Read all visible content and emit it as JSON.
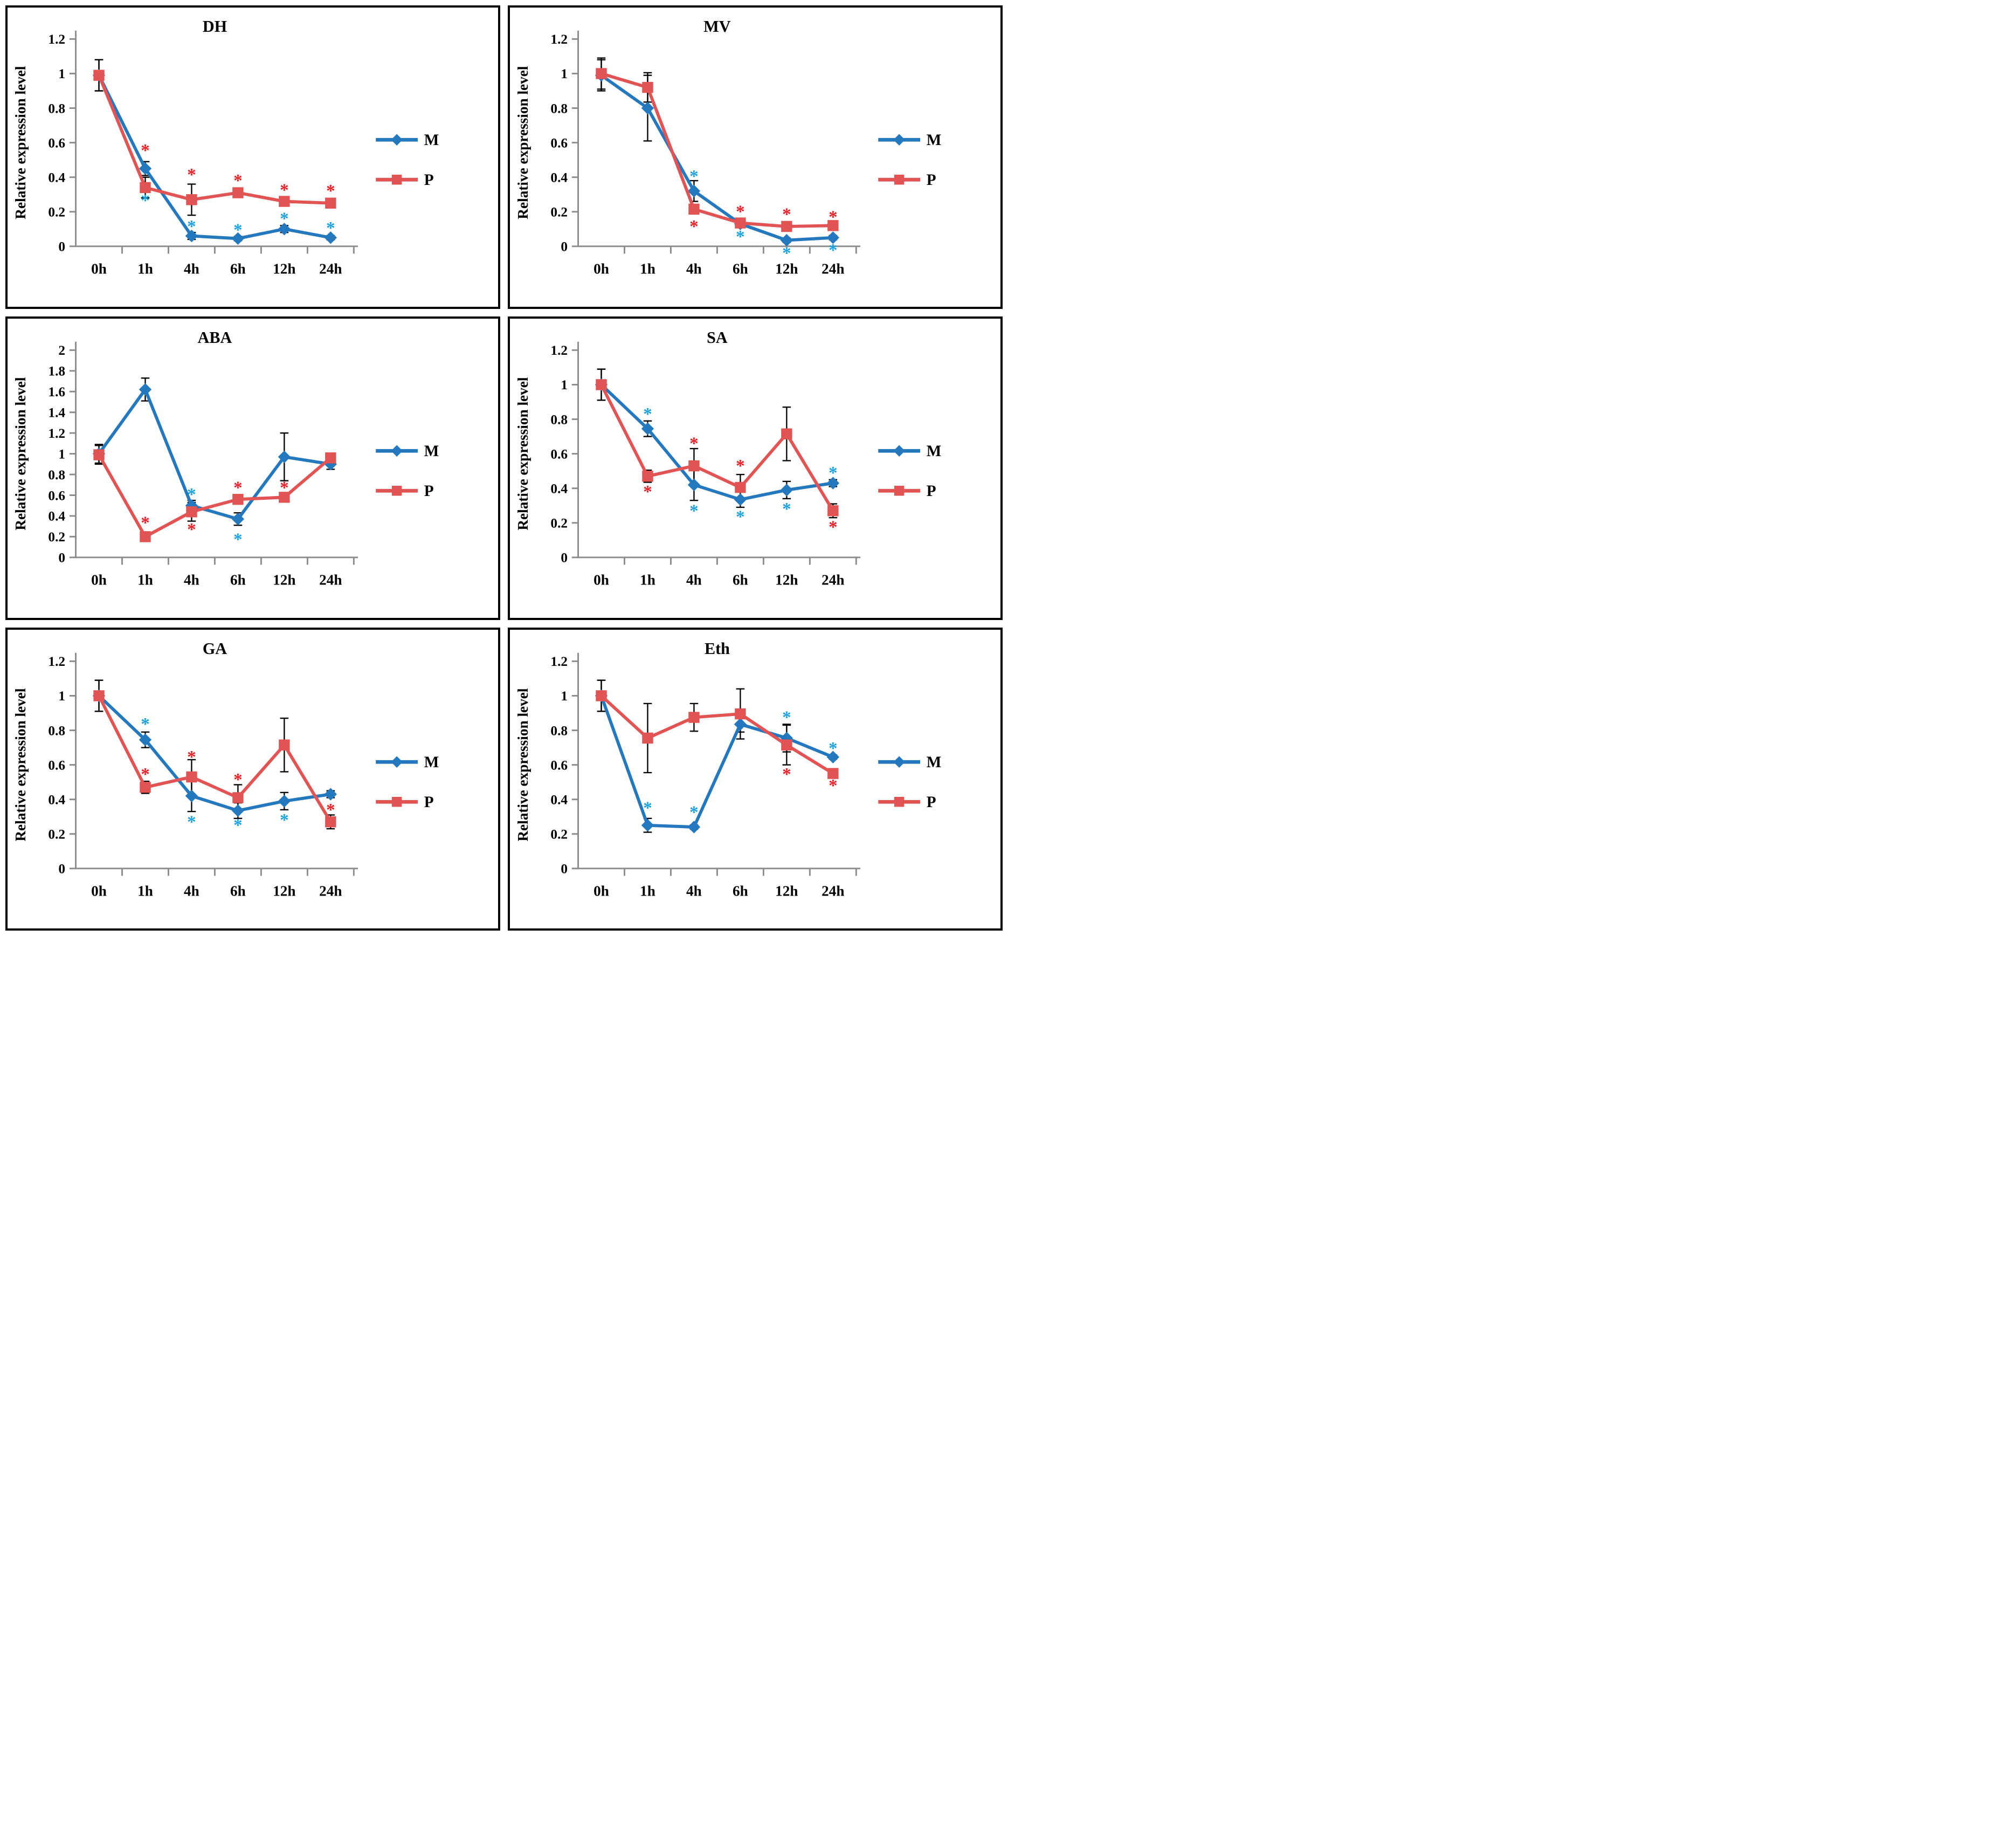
{
  "figure": {
    "star_glyph": "*",
    "colors": {
      "m_line": "#2478BE",
      "p_line": "#E25353",
      "m_star": "#1BA2DF",
      "p_star": "#EE1D25",
      "axis": "#8C8C8C",
      "error_bar": "#000000",
      "text": "#000000",
      "panel_border": "#000000"
    }
  },
  "chart_data": [
    {
      "type": "line",
      "title": "DH",
      "ylabel": "Relative expression level",
      "xlabel": "",
      "ylim": [
        0,
        1.2
      ],
      "yticks": [
        "0",
        "0.2",
        "0.4",
        "0.6",
        "0.8",
        "1",
        "1.2"
      ],
      "categories": [
        "0h",
        "1h",
        "4h",
        "6h",
        "12h",
        "24h"
      ],
      "legend_position": "right",
      "series": [
        {
          "name": "M",
          "marker": "diamond",
          "values": [
            0.99,
            0.45,
            0.06,
            0.045,
            0.1,
            0.05
          ],
          "errors": [
            0.09,
            0.04,
            0.02,
            0.012,
            0.02,
            0.012
          ]
        },
        {
          "name": "P",
          "marker": "square",
          "values": [
            0.99,
            0.34,
            0.27,
            0.31,
            0.26,
            0.25
          ],
          "errors": [
            0.09,
            0.06,
            0.09,
            0.025,
            0.025,
            0.02
          ]
        }
      ],
      "significance_marks": [
        {
          "t": 1,
          "series": "P",
          "y": 0.565
        },
        {
          "t": 1,
          "series": "M",
          "y": 0.275
        },
        {
          "t": 2,
          "series": "P",
          "y": 0.425
        },
        {
          "t": 2,
          "series": "M",
          "y": 0.125
        },
        {
          "t": 3,
          "series": "P",
          "y": 0.39
        },
        {
          "t": 3,
          "series": "M",
          "y": 0.105
        },
        {
          "t": 4,
          "series": "P",
          "y": 0.335
        },
        {
          "t": 4,
          "series": "M",
          "y": 0.17
        },
        {
          "t": 5,
          "series": "P",
          "y": 0.33
        },
        {
          "t": 5,
          "series": "M",
          "y": 0.115
        }
      ]
    },
    {
      "type": "line",
      "title": "MV",
      "ylabel": "Relative expression level",
      "xlabel": "",
      "ylim": [
        0,
        1.2
      ],
      "yticks": [
        "0",
        "0.2",
        "0.4",
        "0.6",
        "0.8",
        "1",
        "1.2"
      ],
      "categories": [
        "0h",
        "1h",
        "4h",
        "6h",
        "12h",
        "24h"
      ],
      "legend_position": "right",
      "series": [
        {
          "name": "M",
          "marker": "diamond",
          "values": [
            0.99,
            0.8,
            0.32,
            0.13,
            0.035,
            0.05
          ],
          "errors": [
            0.09,
            0.19,
            0.06,
            0.02,
            0.012,
            0.012
          ]
        },
        {
          "name": "P",
          "marker": "square",
          "values": [
            1.0,
            0.92,
            0.215,
            0.135,
            0.115,
            0.12
          ],
          "errors": [
            0.09,
            0.085,
            0.02,
            0.02,
            0.018,
            0.018
          ]
        }
      ],
      "significance_marks": [
        {
          "t": 2,
          "series": "M",
          "y": 0.415
        },
        {
          "t": 2,
          "series": "P",
          "y": 0.125
        },
        {
          "t": 3,
          "series": "P",
          "y": 0.21
        },
        {
          "t": 3,
          "series": "M",
          "y": 0.065
        },
        {
          "t": 4,
          "series": "P",
          "y": 0.195
        },
        {
          "t": 4,
          "series": "M",
          "y": -0.03
        },
        {
          "t": 5,
          "series": "P",
          "y": 0.18
        },
        {
          "t": 5,
          "series": "M",
          "y": -0.012
        }
      ]
    },
    {
      "type": "line",
      "title": "ABA",
      "ylabel": "Relative expression level",
      "xlabel": "",
      "ylim": [
        0,
        2
      ],
      "yticks": [
        "0",
        "0.2",
        "0.4",
        "0.6",
        "0.8",
        "1",
        "1.2",
        "1.4",
        "1.6",
        "1.8",
        "2"
      ],
      "categories": [
        "0h",
        "1h",
        "4h",
        "6h",
        "12h",
        "24h"
      ],
      "legend_position": "right",
      "series": [
        {
          "name": "M",
          "marker": "diamond",
          "values": [
            1.0,
            1.62,
            0.5,
            0.37,
            0.97,
            0.9
          ],
          "errors": [
            0.09,
            0.11,
            0.05,
            0.06,
            0.23,
            0.05
          ]
        },
        {
          "name": "P",
          "marker": "square",
          "values": [
            0.99,
            0.2,
            0.44,
            0.56,
            0.58,
            0.96
          ],
          "errors": [
            0.09,
            0.03,
            0.09,
            0.035,
            0.045,
            0.03
          ]
        }
      ],
      "significance_marks": [
        {
          "t": 1,
          "series": "P",
          "y": 0.35
        },
        {
          "t": 2,
          "series": "M",
          "y": 0.625
        },
        {
          "t": 2,
          "series": "P",
          "y": 0.285
        },
        {
          "t": 3,
          "series": "P",
          "y": 0.69
        },
        {
          "t": 3,
          "series": "M",
          "y": 0.19
        },
        {
          "t": 4,
          "series": "P",
          "y": 0.69
        }
      ]
    },
    {
      "type": "line",
      "title": "SA",
      "ylabel": "Relative expression level",
      "xlabel": "",
      "ylim": [
        0,
        1.2
      ],
      "yticks": [
        "0",
        "0.2",
        "0.4",
        "0.6",
        "0.8",
        "1",
        "1.2"
      ],
      "categories": [
        "0h",
        "1h",
        "4h",
        "6h",
        "12h",
        "24h"
      ],
      "legend_position": "right",
      "series": [
        {
          "name": "M",
          "marker": "diamond",
          "values": [
            1.0,
            0.745,
            0.42,
            0.335,
            0.39,
            0.43
          ],
          "errors": [
            0.09,
            0.045,
            0.09,
            0.045,
            0.05,
            0.02
          ]
        },
        {
          "name": "P",
          "marker": "square",
          "values": [
            1.0,
            0.47,
            0.53,
            0.405,
            0.715,
            0.27
          ],
          "errors": [
            0.09,
            0.035,
            0.1,
            0.075,
            0.155,
            0.04
          ]
        }
      ],
      "significance_marks": [
        {
          "t": 1,
          "series": "M",
          "y": 0.84
        },
        {
          "t": 1,
          "series": "P",
          "y": 0.39
        },
        {
          "t": 2,
          "series": "P",
          "y": 0.67
        },
        {
          "t": 2,
          "series": "M",
          "y": 0.28
        },
        {
          "t": 3,
          "series": "P",
          "y": 0.54
        },
        {
          "t": 3,
          "series": "M",
          "y": 0.245
        },
        {
          "t": 4,
          "series": "M",
          "y": 0.29
        },
        {
          "t": 5,
          "series": "M",
          "y": 0.5
        },
        {
          "t": 5,
          "series": "P",
          "y": 0.185
        }
      ]
    },
    {
      "type": "line",
      "title": "GA",
      "ylabel": "Relative expression level",
      "xlabel": "",
      "ylim": [
        0,
        1.2
      ],
      "yticks": [
        "0",
        "0.2",
        "0.4",
        "0.6",
        "0.8",
        "1",
        "1.2"
      ],
      "categories": [
        "0h",
        "1h",
        "4h",
        "6h",
        "12h",
        "24h"
      ],
      "legend_position": "right",
      "series": [
        {
          "name": "M",
          "marker": "diamond",
          "values": [
            1.0,
            0.745,
            0.42,
            0.335,
            0.39,
            0.43
          ],
          "errors": [
            0.09,
            0.045,
            0.09,
            0.045,
            0.05,
            0.02
          ]
        },
        {
          "name": "P",
          "marker": "square",
          "values": [
            1.0,
            0.47,
            0.53,
            0.41,
            0.715,
            0.27
          ],
          "errors": [
            0.09,
            0.035,
            0.1,
            0.075,
            0.155,
            0.04
          ]
        }
      ],
      "significance_marks": [
        {
          "t": 1,
          "series": "M",
          "y": 0.845
        },
        {
          "t": 1,
          "series": "P",
          "y": 0.555
        },
        {
          "t": 2,
          "series": "P",
          "y": 0.655
        },
        {
          "t": 2,
          "series": "M",
          "y": 0.28
        },
        {
          "t": 3,
          "series": "P",
          "y": 0.525
        },
        {
          "t": 3,
          "series": "M",
          "y": 0.26
        },
        {
          "t": 4,
          "series": "M",
          "y": 0.29
        },
        {
          "t": 5,
          "series": "P",
          "y": 0.35
        }
      ]
    },
    {
      "type": "line",
      "title": "Eth",
      "ylabel": "Relative expression level",
      "xlabel": "",
      "ylim": [
        0,
        1.2
      ],
      "yticks": [
        "0",
        "0.2",
        "0.4",
        "0.6",
        "0.8",
        "1",
        "1.2"
      ],
      "categories": [
        "0h",
        "1h",
        "4h",
        "6h",
        "12h",
        "24h"
      ],
      "legend_position": "right",
      "series": [
        {
          "name": "M",
          "marker": "diamond",
          "values": [
            1.0,
            0.25,
            0.24,
            0.835,
            0.755,
            0.645
          ],
          "errors": [
            0.09,
            0.04,
            0.012,
            0.045,
            0.08,
            0.012
          ]
        },
        {
          "name": "P",
          "marker": "square",
          "values": [
            1.0,
            0.755,
            0.875,
            0.895,
            0.715,
            0.55
          ],
          "errors": [
            0.09,
            0.2,
            0.08,
            0.145,
            0.115,
            0.012
          ]
        }
      ],
      "significance_marks": [
        {
          "t": 1,
          "series": "M",
          "y": 0.36
        },
        {
          "t": 2,
          "series": "M",
          "y": 0.335
        },
        {
          "t": 4,
          "series": "M",
          "y": 0.885
        },
        {
          "t": 4,
          "series": "P",
          "y": 0.555
        },
        {
          "t": 5,
          "series": "M",
          "y": 0.705
        },
        {
          "t": 5,
          "series": "P",
          "y": 0.49
        }
      ]
    }
  ]
}
